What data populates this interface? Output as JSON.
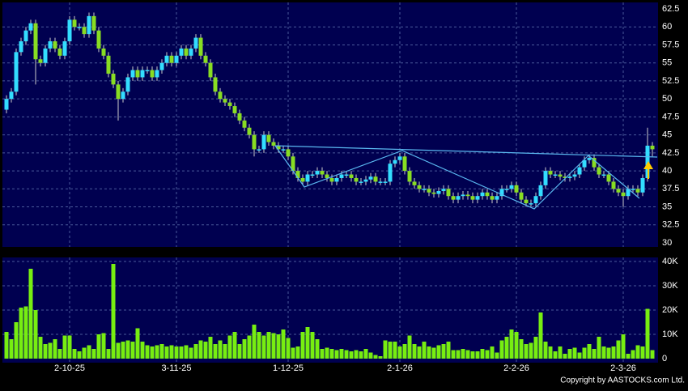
{
  "chart_data": {
    "type": "candlestick",
    "categories": [
      null,
      null,
      null,
      null,
      null,
      null,
      null,
      null,
      null,
      null,
      null,
      null,
      null,
      "2-10-25",
      null,
      null,
      null,
      null,
      null,
      null,
      null,
      null,
      null,
      null,
      null,
      null,
      null,
      null,
      null,
      null,
      null,
      null,
      null,
      null,
      null,
      "3-11-25",
      null,
      null,
      null,
      null,
      null,
      null,
      null,
      null,
      null,
      null,
      null,
      null,
      null,
      null,
      null,
      null,
      null,
      null,
      null,
      null,
      null,
      null,
      "1-12-25",
      null,
      null,
      null,
      null,
      null,
      null,
      null,
      null,
      null,
      null,
      null,
      null,
      null,
      null,
      null,
      null,
      null,
      null,
      null,
      null,
      null,
      null,
      "2-1-26",
      null,
      null,
      null,
      null,
      null,
      null,
      null,
      null,
      null,
      null,
      null,
      null,
      null,
      null,
      null,
      null,
      null,
      null,
      null,
      null,
      null,
      null,
      null,
      "2-2-26",
      null,
      null,
      null,
      null,
      null,
      null,
      null,
      null,
      null,
      null,
      null,
      null,
      null,
      null,
      null,
      null,
      null,
      null,
      null,
      null,
      null,
      "2-3-26",
      null,
      null,
      null,
      null,
      null,
      null
    ],
    "open": [
      48.5,
      50,
      51,
      56.5,
      58,
      59.5,
      60.5,
      55.5,
      55,
      57,
      58,
      57,
      56,
      58,
      61,
      60,
      60,
      59,
      61.5,
      59.5,
      57,
      56,
      53.5,
      52,
      50,
      51,
      53,
      54,
      53,
      54,
      54,
      53,
      54,
      55,
      56,
      55,
      56,
      57,
      56,
      57,
      58.5,
      56,
      55,
      53,
      51,
      50,
      49.5,
      49,
      48,
      47,
      46,
      45,
      43,
      43,
      45,
      44,
      43.5,
      43,
      43,
      42,
      40,
      39,
      38.5,
      39.5,
      39.5,
      40,
      39.5,
      39,
      38.5,
      39,
      39.5,
      39.5,
      39,
      38.5,
      38.5,
      38.8,
      39.2,
      38.5,
      38.5,
      38.5,
      41,
      41.5,
      42,
      40,
      38.5,
      38,
      37.5,
      37.5,
      37,
      36.8,
      37.2,
      37.5,
      36.5,
      36,
      36.5,
      36.7,
      36.5,
      36,
      36.5,
      37,
      36.5,
      36,
      36.5,
      37.5,
      37.5,
      38,
      37,
      36,
      35.5,
      35.5,
      36.5,
      38,
      40,
      39.5,
      39.5,
      39.2,
      39,
      39.2,
      39.5,
      40.5,
      41.5,
      41.8,
      40.5,
      39.5,
      39.5,
      38.5,
      37.5,
      37,
      36.5,
      37.5,
      37.5,
      37,
      39,
      43.5
    ],
    "high": [
      50.5,
      51.5,
      57,
      58.5,
      60,
      61,
      61,
      56,
      57.5,
      58.5,
      58.5,
      57.5,
      58.5,
      61.5,
      61.5,
      60.5,
      60.5,
      62,
      62,
      60,
      57.5,
      56.5,
      54,
      52.5,
      51.5,
      53.5,
      54.5,
      54.5,
      54.5,
      54.5,
      54.5,
      54.5,
      55.5,
      56.5,
      56.5,
      56.5,
      57.5,
      57.5,
      57.5,
      59,
      59,
      56.5,
      55.5,
      53.5,
      51.5,
      50.5,
      50,
      49.5,
      48.5,
      47.5,
      46.5,
      45.5,
      43.5,
      45.5,
      45.5,
      44.5,
      44,
      43.5,
      43.5,
      42.5,
      40.5,
      39.5,
      40,
      40,
      40.5,
      40.5,
      40,
      39.5,
      39.5,
      40,
      40,
      40,
      39.5,
      39,
      39.3,
      39.7,
      39.7,
      39,
      39,
      41.5,
      42,
      42.5,
      42.5,
      40.5,
      39,
      38.5,
      38,
      38,
      37.5,
      37.7,
      38,
      38,
      37,
      37,
      37.2,
      37.2,
      37,
      37,
      37.5,
      37.5,
      37,
      37,
      38,
      38,
      38.5,
      38.5,
      37.5,
      36.5,
      36,
      37,
      38.5,
      40.5,
      40.5,
      40,
      40,
      39.7,
      39.7,
      40,
      41,
      42,
      42.3,
      42.3,
      41,
      40,
      40,
      39,
      38,
      37.5,
      38,
      38,
      38,
      39.5,
      46,
      44
    ],
    "low": [
      48,
      49.5,
      50.5,
      56,
      57.5,
      59,
      52,
      54.5,
      54.5,
      56.5,
      56.5,
      55.5,
      55.5,
      57.5,
      59.5,
      59.5,
      58.5,
      58.5,
      59,
      56.5,
      55.5,
      53,
      51.5,
      47,
      49.5,
      50.5,
      52.5,
      52.5,
      52.5,
      53.5,
      52.5,
      52.5,
      53.5,
      54.5,
      54.5,
      54.5,
      55.5,
      55.5,
      55.5,
      56.5,
      55.5,
      54.5,
      52.5,
      50.5,
      49.5,
      49,
      48.5,
      47.5,
      46.5,
      45.5,
      44.5,
      42,
      42.5,
      42.5,
      43.5,
      43,
      42.5,
      42.5,
      41.5,
      39.5,
      38.5,
      38,
      38,
      39,
      39,
      39,
      38.5,
      38,
      38,
      38.5,
      39,
      38.5,
      38,
      38,
      38,
      38.3,
      38,
      38,
      38,
      38,
      40.5,
      41,
      39.5,
      38,
      37.5,
      37,
      37,
      36.5,
      36.3,
      36.3,
      36.7,
      36,
      35.5,
      35.5,
      36,
      36,
      35.5,
      35.5,
      36,
      36,
      35.5,
      35.5,
      36,
      37,
      37,
      36.5,
      35.5,
      35,
      35,
      35,
      36,
      37.5,
      39,
      39,
      38.7,
      38.5,
      38.5,
      38.7,
      39,
      40,
      41,
      40,
      39,
      39,
      38,
      37,
      36.5,
      35,
      36,
      37,
      36.5,
      36.5,
      38.5,
      42
    ],
    "close": [
      50,
      51,
      56.5,
      58,
      59.5,
      60.5,
      55.5,
      55,
      57,
      58,
      57,
      56,
      58,
      61,
      60,
      60,
      59,
      61.5,
      59.5,
      57,
      56,
      53.5,
      52,
      50,
      51,
      53,
      54,
      53,
      54,
      54,
      53,
      54,
      55,
      56,
      55,
      56,
      57,
      56,
      57,
      58.5,
      56,
      55,
      53,
      51,
      50,
      49.5,
      49,
      48,
      47,
      46,
      45,
      43,
      43,
      45,
      44,
      43.5,
      43,
      43,
      42,
      40,
      39,
      38.5,
      39.5,
      39.5,
      40,
      39.5,
      39,
      38.5,
      39,
      39.5,
      39.5,
      39,
      38.5,
      38.5,
      38.8,
      39.2,
      38.5,
      38.5,
      38.5,
      41,
      41.5,
      42,
      40,
      38.5,
      38,
      37.5,
      37.5,
      37,
      36.8,
      37.2,
      37.5,
      36.5,
      36,
      36.5,
      36.7,
      36.5,
      36,
      36.5,
      37,
      36.5,
      36,
      36.5,
      37.5,
      37.5,
      38,
      37,
      36,
      35.5,
      35.5,
      36.5,
      38,
      40,
      39.5,
      39.5,
      39.2,
      39,
      39.2,
      39.5,
      40.5,
      41.5,
      41.8,
      40.5,
      39.5,
      39.5,
      38.5,
      37.5,
      37,
      36.5,
      37.5,
      37.5,
      37,
      39,
      43.5,
      43
    ],
    "up_color": "#33ddff",
    "down_color": "#88dd22",
    "ylim": [
      30,
      62.5
    ],
    "yticks": [
      30,
      32.5,
      35,
      37.5,
      40,
      42.5,
      45,
      47.5,
      50,
      52.5,
      55,
      57.5,
      60,
      62.5
    ],
    "grid": true,
    "volume": {
      "values": [
        11000,
        8000,
        15000,
        21000,
        21500,
        37000,
        20000,
        9000,
        6000,
        6500,
        8000,
        4000,
        9500,
        9500,
        4000,
        3000,
        4500,
        5500,
        4000,
        10000,
        10500,
        4000,
        39000,
        6500,
        7000,
        7500,
        7000,
        12500,
        7000,
        5500,
        5000,
        5500,
        6000,
        5000,
        5500,
        5000,
        5000,
        5500,
        4500,
        6000,
        7500,
        7000,
        9000,
        6000,
        7500,
        6000,
        9500,
        11000,
        6000,
        8000,
        9500,
        14000,
        11000,
        9500,
        11000,
        10500,
        10000,
        12000,
        8500,
        4500,
        5000,
        11000,
        13000,
        11000,
        8000,
        4000,
        4500,
        4000,
        3500,
        4000,
        3500,
        3000,
        3500,
        3000,
        4000,
        2500,
        1500,
        1000,
        7500,
        7000,
        7000,
        5000,
        6000,
        9500,
        6000,
        5000,
        7000,
        5000,
        4500,
        5500,
        6000,
        7000,
        3500,
        3500,
        4000,
        3500,
        3000,
        3000,
        4000,
        3500,
        5000,
        2500,
        7500,
        9000,
        12000,
        11000,
        8000,
        6000,
        6500,
        9000,
        19000,
        7000,
        5000,
        3000,
        5000,
        2000,
        4000,
        4500,
        2500,
        4500,
        6000,
        4000,
        9000,
        5000,
        4500,
        5000,
        7500,
        10000,
        2000,
        3500,
        5500,
        5000,
        20500,
        3500
      ],
      "color": "#77ee11",
      "ylim": [
        0,
        40000
      ],
      "yticks": [
        0,
        {
          "value": 10000,
          "label": "10K"
        },
        {
          "value": 20000,
          "label": "20K"
        },
        {
          "value": 30000,
          "label": "30K"
        },
        {
          "value": 40000,
          "label": "40K"
        }
      ]
    },
    "copyright": "Copyright by AASTOCKS.com Ltd."
  }
}
